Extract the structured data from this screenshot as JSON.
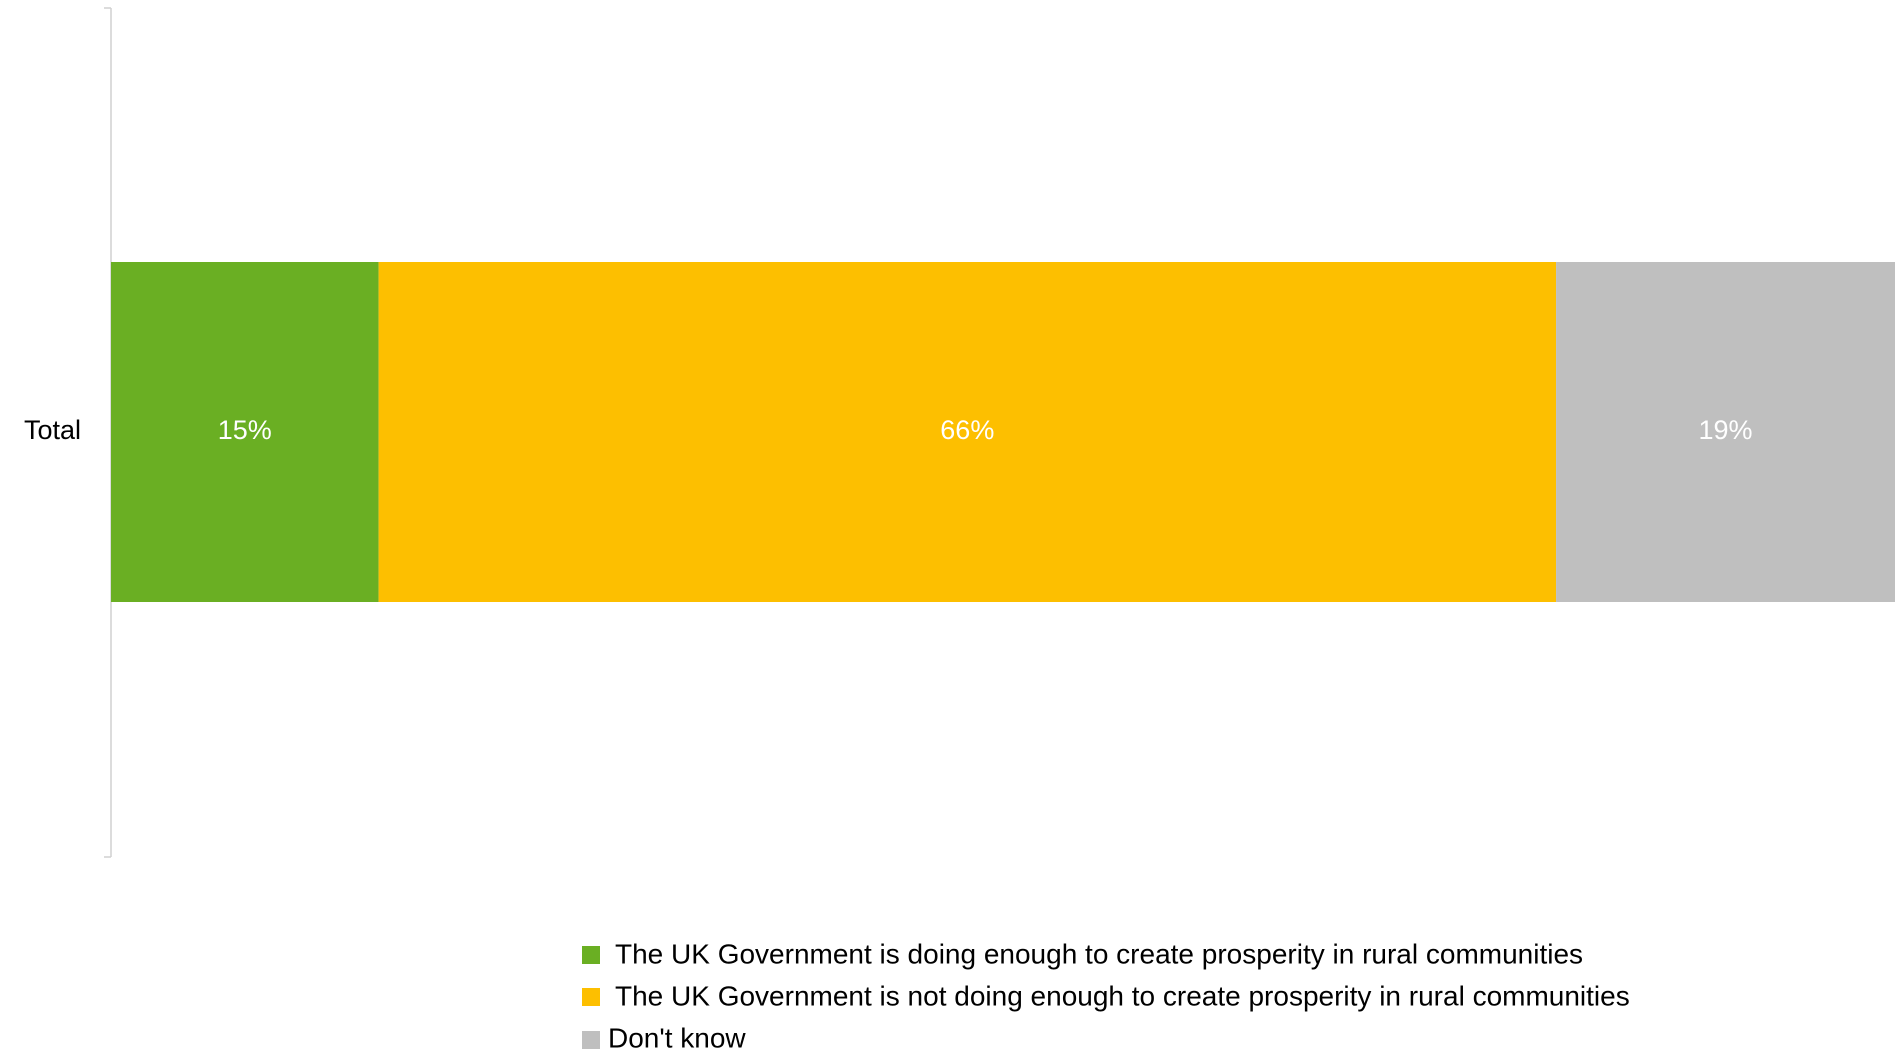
{
  "chart_data": {
    "type": "bar",
    "orientation": "horizontal",
    "stacked": true,
    "categories": [
      "Total"
    ],
    "series": [
      {
        "name": "The UK Government is doing enough to create prosperity in rural communities",
        "values": [
          15
        ],
        "label": "15%",
        "color": "#6aaf23"
      },
      {
        "name": "The UK Government is not doing enough to create prosperity in rural communities",
        "values": [
          66
        ],
        "label": "66%",
        "color": "#fdbf00"
      },
      {
        "name": "Don't know",
        "values": [
          19
        ],
        "label": "19%",
        "color": "#bfbfbf"
      }
    ],
    "xlim": [
      0,
      100
    ],
    "grid": false,
    "legend_position": "bottom"
  }
}
